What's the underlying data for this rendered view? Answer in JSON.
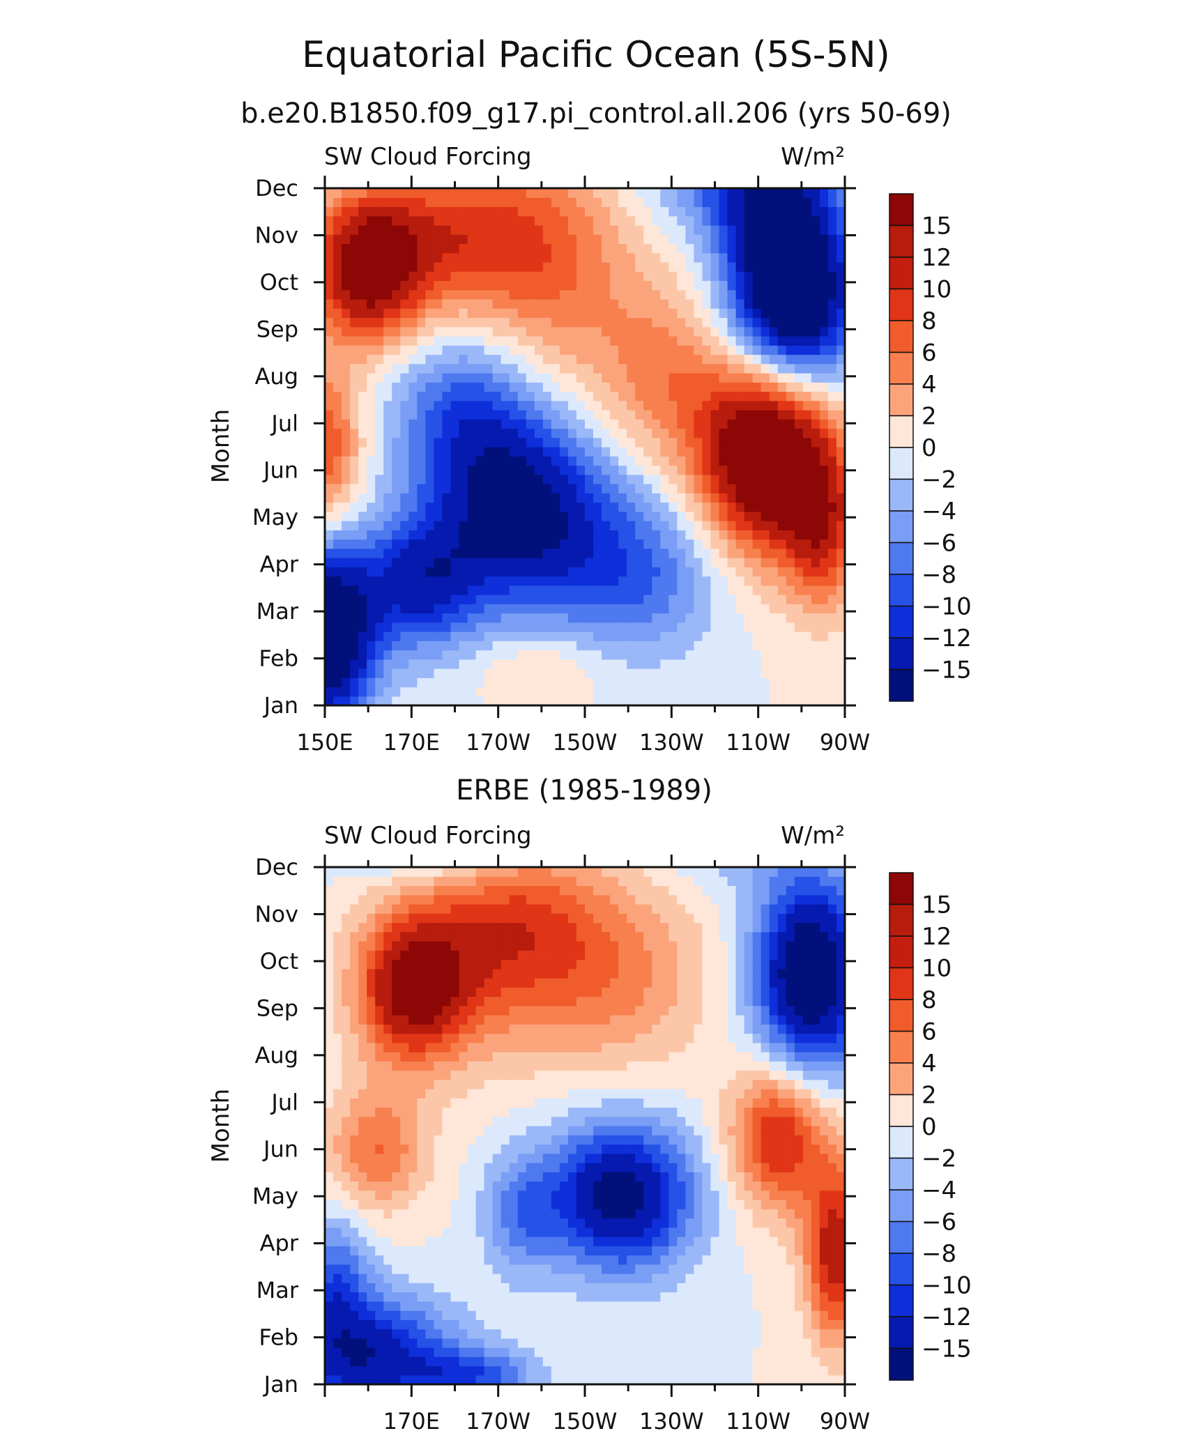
{
  "chart_data": [
    {
      "type": "heatmap",
      "title": "Equatorial Pacific Ocean (5S-5N)",
      "subtitle": "b.e20.B1850.f09_g17.pi_control.all.206 (yrs 50-69)",
      "left_label": "SW Cloud Forcing",
      "units": "W/m²",
      "ylabel": "Month",
      "months": [
        "Jan",
        "Feb",
        "Mar",
        "Apr",
        "May",
        "Jun",
        "Jul",
        "Aug",
        "Sep",
        "Oct",
        "Nov",
        "Dec"
      ],
      "x_ticks": [
        "150E",
        "170E",
        "170W",
        "150W",
        "130W",
        "110W",
        "90W"
      ],
      "x_range_deg_east": [
        150,
        270
      ],
      "levels": [
        "15",
        "12",
        "10",
        "8",
        "6",
        "4",
        "2",
        "0",
        "-2",
        "-4",
        "-6",
        "-8",
        "-10",
        "-12",
        "-15"
      ],
      "blobs": [
        {
          "lon": 160,
          "month": 9.3,
          "amp": 17,
          "slon": 9,
          "smon": 1.1
        },
        {
          "lon": 182,
          "month": 10.0,
          "amp": 10,
          "slon": 16,
          "smon": 1.2
        },
        {
          "lon": 205,
          "month": 9.0,
          "amp": 6,
          "slon": 14,
          "smon": 2.0
        },
        {
          "lon": 228,
          "month": 7.0,
          "amp": 6,
          "slon": 10,
          "smon": 1.3
        },
        {
          "lon": 252,
          "month": 5.4,
          "amp": 23,
          "slon": 11,
          "smon": 1.5
        },
        {
          "lon": 265,
          "month": 3.7,
          "amp": 10,
          "slon": 6,
          "smon": 1.2
        },
        {
          "lon": 150,
          "month": 5.5,
          "amp": 10,
          "slon": 6,
          "smon": 1.2
        },
        {
          "lon": 258,
          "month": 8.6,
          "amp": -23,
          "slon": 10,
          "smon": 1.4
        },
        {
          "lon": 253,
          "month": 10.8,
          "amp": -10,
          "slon": 10,
          "smon": 1.2
        },
        {
          "lon": 240,
          "month": 11.2,
          "amp": -5,
          "slon": 14,
          "smon": 0.8
        },
        {
          "lon": 195,
          "month": 4.2,
          "amp": -17,
          "slon": 14,
          "smon": 1.4
        },
        {
          "lon": 222,
          "month": 2.8,
          "amp": -8,
          "slon": 14,
          "smon": 1.2
        },
        {
          "lon": 150,
          "month": 1.5,
          "amp": -22,
          "slon": 8,
          "smon": 1.3
        },
        {
          "lon": 172,
          "month": 2.6,
          "amp": -12,
          "slon": 10,
          "smon": 1.0
        },
        {
          "lon": 182,
          "month": 6.3,
          "amp": -8,
          "slon": 12,
          "smon": 1.2
        },
        {
          "lon": 160,
          "month": 11.8,
          "amp": -6,
          "slon": 10,
          "smon": 0.4
        },
        {
          "lon": 200,
          "month": 0.8,
          "amp": 3,
          "slon": 10,
          "smon": 0.5
        }
      ]
    },
    {
      "type": "heatmap",
      "title": "ERBE (1985-1989)",
      "left_label": "SW Cloud Forcing",
      "units": "W/m²",
      "ylabel": "Month",
      "months": [
        "Jan",
        "Feb",
        "Mar",
        "Apr",
        "May",
        "Jun",
        "Jul",
        "Aug",
        "Sep",
        "Oct",
        "Nov",
        "Dec"
      ],
      "x_ticks": [
        "170E",
        "170W",
        "150W",
        "130W",
        "110W",
        "90W"
      ],
      "x_range_deg_east": [
        150,
        270
      ],
      "levels": [
        "15",
        "12",
        "10",
        "8",
        "6",
        "4",
        "2",
        "0",
        "-2",
        "-4",
        "-6",
        "-8",
        "-10",
        "-12",
        "-15"
      ],
      "blobs": [
        {
          "lon": 170,
          "month": 8.4,
          "amp": 15,
          "slon": 9,
          "smon": 1.1
        },
        {
          "lon": 185,
          "month": 9.3,
          "amp": 8,
          "slon": 14,
          "smon": 1.5
        },
        {
          "lon": 215,
          "month": 8.7,
          "amp": 7,
          "slon": 16,
          "smon": 1.4
        },
        {
          "lon": 200,
          "month": 10.0,
          "amp": 4,
          "slon": 12,
          "smon": 1.0
        },
        {
          "lon": 162,
          "month": 5.0,
          "amp": 8,
          "slon": 8,
          "smon": 0.9
        },
        {
          "lon": 255,
          "month": 5.3,
          "amp": 13,
          "slon": 8,
          "smon": 1.1
        },
        {
          "lon": 268,
          "month": 2.8,
          "amp": 14,
          "slon": 5,
          "smon": 1.3
        },
        {
          "lon": 218,
          "month": 4.0,
          "amp": -17,
          "slon": 12,
          "smon": 1.1
        },
        {
          "lon": 195,
          "month": 3.6,
          "amp": -6,
          "slon": 6,
          "smon": 0.9
        },
        {
          "lon": 262,
          "month": 8.7,
          "amp": -20,
          "slon": 9,
          "smon": 1.5
        },
        {
          "lon": 173,
          "month": 12.2,
          "amp": -19,
          "slon": 13,
          "smon": 0.7
        },
        {
          "lon": 160,
          "month": 0.6,
          "amp": -14,
          "slon": 14,
          "smon": 0.9
        },
        {
          "lon": 185,
          "month": 0.2,
          "amp": -8,
          "slon": 10,
          "smon": 0.4
        },
        {
          "lon": 152,
          "month": 2.2,
          "amp": -8,
          "slon": 6,
          "smon": 1.0
        },
        {
          "lon": 244,
          "month": 11.5,
          "amp": -4,
          "slon": 10,
          "smon": 0.6
        }
      ]
    }
  ],
  "colors": {
    "positive": [
      "#fee6d8",
      "#fcc7a9",
      "#fba47c",
      "#f8804f",
      "#f05c2b",
      "#e03517",
      "#c41e10",
      "#b71c0d",
      "#8c0705"
    ],
    "negative": [
      "#dce9fc",
      "#bcd2fb",
      "#9ab8f8",
      "#7a9ef5",
      "#4e79ef",
      "#2652e8",
      "#0e2fd9",
      "#061ab0",
      "#02107c"
    ]
  }
}
